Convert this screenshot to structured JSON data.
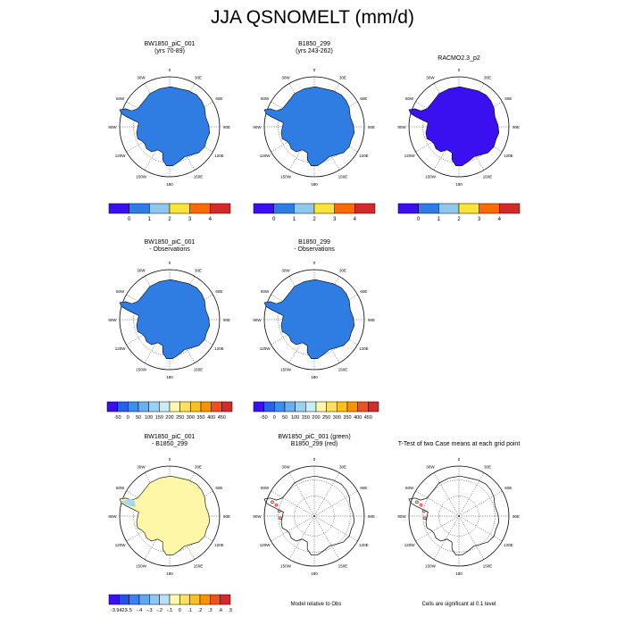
{
  "title": "JJA QSNOMELT (mm/d)",
  "colors": {
    "ice_blue": "#2f7de2",
    "deep_blue": "#3a10f0",
    "diff_yellow": "#fff7a8",
    "diff_lightblue": "#a8d8f0"
  },
  "panels": [
    {
      "title_line1": "BW1850_piC_001",
      "title_line2": "(yrs 70-89)",
      "fill": "blue"
    },
    {
      "title_line1": "B1850_299",
      "title_line2": "(yrs 243-262)",
      "fill": "blue"
    },
    {
      "title_line1": "RACMO2.3_p2",
      "title_line2": "",
      "fill": "deep"
    },
    {
      "title_line1": "BW1850_piC_001",
      "title_line2": "- Observations",
      "fill": "blue"
    },
    {
      "title_line1": "B1850_299",
      "title_line2": "- Observations",
      "fill": "blue"
    },
    {
      "title_line1": "BW1850_piC_001",
      "title_line2": "- B1850_299",
      "fill": "diff"
    },
    {
      "title_line1": "BW1850_piC_001 (green)",
      "title_line2": "B1850_299 (red)",
      "fill": "outline"
    },
    {
      "title_line1": "T-Test of two Case means at each grid point",
      "title_line2": "",
      "fill": "outline"
    }
  ],
  "longitudes": [
    "0",
    "30E",
    "60E",
    "90E",
    "120E",
    "150E",
    "180",
    "150W",
    "120W",
    "90W",
    "60W",
    "30W"
  ],
  "colorbars": {
    "abs": {
      "colors": [
        "#3a10f0",
        "#2f7de2",
        "#8fc8ee",
        "#ffe53a",
        "#ff6a00",
        "#d42a2a"
      ],
      "labels": [
        "0",
        "1",
        "2",
        "3",
        "4"
      ]
    },
    "obs": {
      "colors": [
        "#3a10f0",
        "#2860e8",
        "#3a8ef0",
        "#6ab0f0",
        "#9ad0f0",
        "#c8ecf8",
        "#fff7b0",
        "#ffe060",
        "#ffc020",
        "#ff9000",
        "#f05020",
        "#d42a2a"
      ],
      "labels": [
        "-50",
        "0",
        "50",
        "100",
        "150",
        "200",
        "250",
        "300",
        "350",
        "400",
        "450"
      ]
    },
    "diff": {
      "colors": [
        "#3a10f0",
        "#2850e8",
        "#3a80f0",
        "#60a8f0",
        "#8ec8f0",
        "#b8e0f8",
        "#fff7b0",
        "#ffe060",
        "#ffc020",
        "#ff9000",
        "#f05020",
        "#d42a2a"
      ],
      "labels": [
        "-3.9423",
        "-.5",
        "-.4",
        "-.3",
        "-.2",
        "-.1",
        "0",
        ".1",
        ".2",
        ".3",
        ".4",
        ".5",
        "5.0021"
      ]
    }
  },
  "notes": {
    "model_relative": "Model relative to Obs",
    "significance": "Cells are significant at 0.1 level"
  }
}
